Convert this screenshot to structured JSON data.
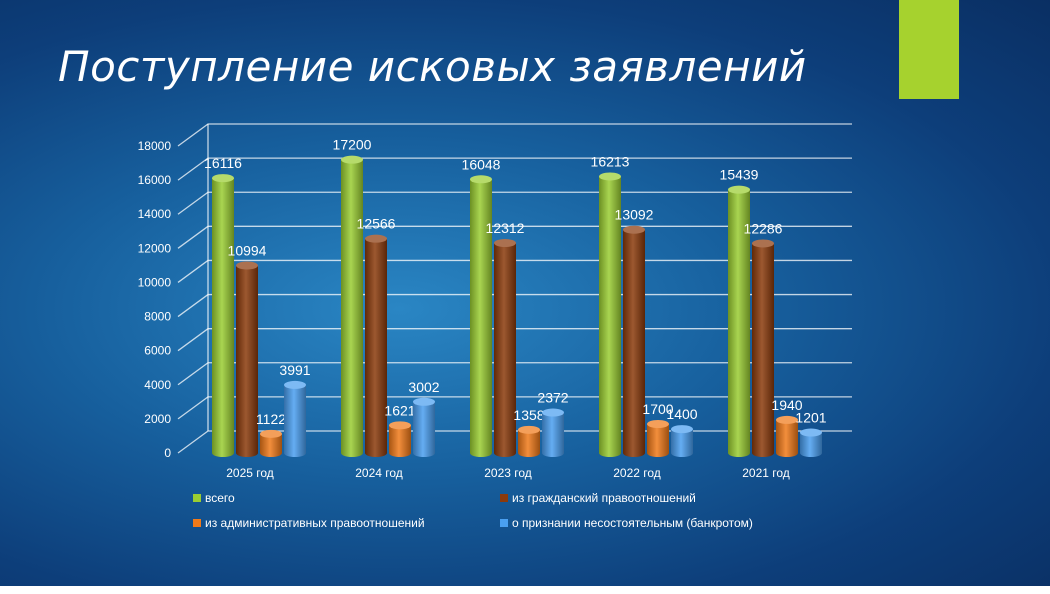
{
  "slide": {
    "title": "Поступление исковых заявлений",
    "accent_color": "#a6d22e"
  },
  "chart_data": {
    "type": "bar",
    "title": "",
    "xlabel": "",
    "ylabel": "",
    "ylim": [
      0,
      18000
    ],
    "yticks": [
      0,
      2000,
      4000,
      6000,
      8000,
      10000,
      12000,
      14000,
      16000,
      18000
    ],
    "grid": true,
    "legend_position": "bottom",
    "categories": [
      "2025 год",
      "2024 год",
      "2023 год",
      "2022 год",
      "2021 год"
    ],
    "series": [
      {
        "name": "всего",
        "color": "#9acd32",
        "values": [
          16116,
          17200,
          16048,
          16213,
          15439
        ]
      },
      {
        "name": "из гражданский правоотношений",
        "color": "#8b3a0c",
        "values": [
          10994,
          12566,
          12312,
          13092,
          12286
        ]
      },
      {
        "name": "из административных правоотношений",
        "color": "#f07a1a",
        "values": [
          1122,
          1621,
          1358,
          1700,
          1940
        ]
      },
      {
        "name": "о признании несостоятельным (банкротом)",
        "color": "#4a9ff0",
        "values": [
          3991,
          3002,
          2372,
          1400,
          1201
        ]
      }
    ]
  }
}
